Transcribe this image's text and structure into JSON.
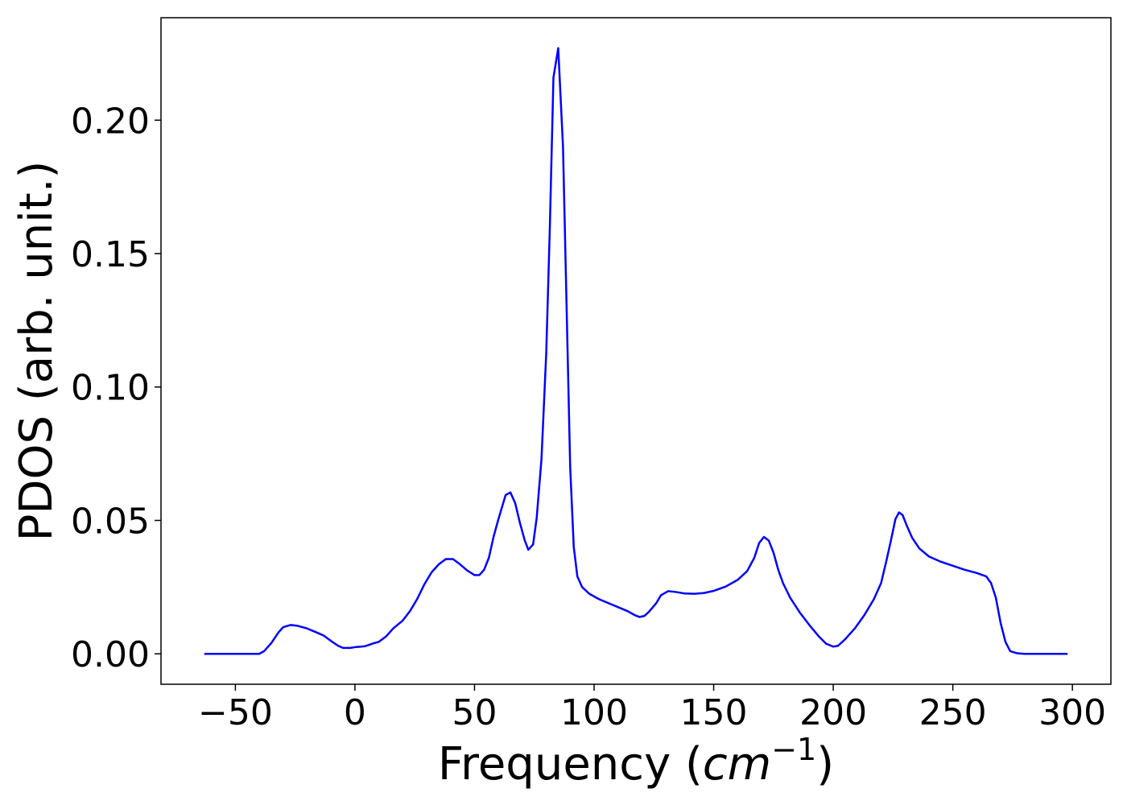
{
  "chart_data": {
    "type": "line",
    "xlabel": [
      "Frequency (",
      "cm",
      "−1",
      ")"
    ],
    "ylabel": "PDOS (arb. unit.)",
    "color": "#0000ff",
    "x": [
      -63,
      -40,
      -38,
      -35,
      -32,
      -30,
      -27,
      -24,
      -20,
      -16,
      -13,
      -10,
      -7,
      -5,
      -2,
      0,
      4,
      8,
      10,
      13,
      16,
      20,
      23,
      26,
      29,
      32,
      35,
      38,
      41,
      44,
      47,
      50,
      52,
      54,
      56,
      58,
      60,
      62,
      63,
      65,
      67,
      69,
      71,
      72.5,
      74.5,
      76,
      78,
      80,
      81.5,
      83,
      85,
      87,
      88.5,
      90,
      91.5,
      93,
      95,
      98,
      102,
      106,
      110,
      114,
      117,
      119,
      121,
      123,
      126,
      128,
      131,
      134,
      138,
      142,
      146,
      150,
      155,
      160,
      164,
      167,
      169,
      171,
      173,
      175,
      177,
      179,
      182,
      186,
      190,
      194,
      197,
      200,
      202,
      205,
      209,
      213,
      217,
      220,
      222,
      224,
      226,
      227.5,
      229,
      231,
      233,
      236,
      240,
      245,
      250,
      255,
      260,
      264,
      266,
      268,
      270,
      272,
      274,
      277,
      280,
      298
    ],
    "values": [
      0,
      0,
      0.001,
      0.004,
      0.008,
      0.01,
      0.0108,
      0.0105,
      0.0095,
      0.008,
      0.0068,
      0.0048,
      0.003,
      0.0022,
      0.0022,
      0.0025,
      0.0028,
      0.004,
      0.0045,
      0.0065,
      0.0095,
      0.0125,
      0.016,
      0.0205,
      0.026,
      0.0305,
      0.0335,
      0.0355,
      0.0355,
      0.0335,
      0.0312,
      0.0295,
      0.0295,
      0.0315,
      0.036,
      0.044,
      0.0505,
      0.0565,
      0.0595,
      0.0605,
      0.0565,
      0.049,
      0.0425,
      0.039,
      0.041,
      0.051,
      0.073,
      0.113,
      0.16,
      0.216,
      0.227,
      0.19,
      0.13,
      0.07,
      0.04,
      0.029,
      0.025,
      0.0225,
      0.0205,
      0.019,
      0.0175,
      0.016,
      0.0145,
      0.0138,
      0.0142,
      0.0158,
      0.019,
      0.022,
      0.0235,
      0.0232,
      0.0226,
      0.0225,
      0.0228,
      0.0236,
      0.0252,
      0.0277,
      0.031,
      0.036,
      0.0415,
      0.0438,
      0.0425,
      0.038,
      0.0315,
      0.0265,
      0.021,
      0.0155,
      0.0108,
      0.0065,
      0.0038,
      0.0027,
      0.003,
      0.0055,
      0.0095,
      0.0145,
      0.0205,
      0.0265,
      0.034,
      0.042,
      0.0505,
      0.053,
      0.052,
      0.0475,
      0.0435,
      0.0395,
      0.0365,
      0.0345,
      0.033,
      0.0315,
      0.0303,
      0.029,
      0.0265,
      0.021,
      0.0115,
      0.0045,
      0.001,
      0.0002,
      0,
      0
    ],
    "xlim": [
      -81.1,
      316.1
    ],
    "xticks": [
      {
        "value": -50,
        "label": "−50"
      },
      0,
      50,
      100,
      150,
      200,
      250,
      300
    ],
    "ylim": [
      -0.0114,
      0.2384
    ],
    "yticks": [
      {
        "value": 0,
        "label": "0.00"
      },
      0.05,
      {
        "value": 0.1,
        "label": "0.10"
      },
      0.15,
      {
        "value": 0.2,
        "label": "0.20"
      }
    ]
  }
}
